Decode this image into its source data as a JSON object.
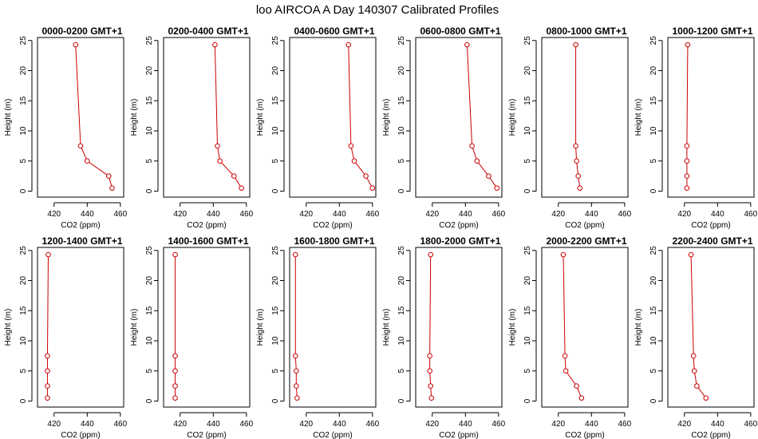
{
  "title": "loo AIRCOA A  Day 140307  Calibrated Profiles",
  "colors": {
    "series": "#cc0000",
    "axis": "#000000",
    "background": "#ffffff"
  },
  "chart_data": [
    {
      "type": "line",
      "title": "0000-0200 GMT+1",
      "xlabel": "CO2 (ppm)",
      "ylabel": "Height (m)",
      "xlim": [
        410,
        462
      ],
      "ylim": [
        -1,
        25.5
      ],
      "xticks": [
        420,
        440,
        460
      ],
      "yticks": [
        0,
        5,
        10,
        15,
        20,
        25
      ],
      "grid": false,
      "x": [
        433,
        436,
        440,
        453,
        455
      ],
      "y": [
        24.3,
        7.5,
        5,
        2.5,
        0.5
      ]
    },
    {
      "type": "line",
      "title": "0200-0400 GMT+1",
      "xlabel": "CO2 (ppm)",
      "ylabel": "Height (m)",
      "xlim": [
        410,
        462
      ],
      "ylim": [
        -1,
        25.5
      ],
      "xticks": [
        420,
        440,
        460
      ],
      "yticks": [
        0,
        5,
        10,
        15,
        20,
        25
      ],
      "grid": false,
      "x": [
        441,
        442.5,
        444,
        452.5,
        457
      ],
      "y": [
        24.3,
        7.5,
        5,
        2.5,
        0.5
      ]
    },
    {
      "type": "line",
      "title": "0400-0600 GMT+1",
      "xlabel": "CO2 (ppm)",
      "ylabel": "Height (m)",
      "xlim": [
        410,
        462
      ],
      "ylim": [
        -1,
        25.5
      ],
      "xticks": [
        420,
        440,
        460
      ],
      "yticks": [
        0,
        5,
        10,
        15,
        20,
        25
      ],
      "grid": false,
      "x": [
        445.5,
        447,
        449,
        456,
        460
      ],
      "y": [
        24.3,
        7.5,
        5,
        2.5,
        0.5
      ]
    },
    {
      "type": "line",
      "title": "0600-0800 GMT+1",
      "xlabel": "CO2 (ppm)",
      "ylabel": "Height (m)",
      "xlim": [
        410,
        462
      ],
      "ylim": [
        -1,
        25.5
      ],
      "xticks": [
        420,
        440,
        460
      ],
      "yticks": [
        0,
        5,
        10,
        15,
        20,
        25
      ],
      "grid": false,
      "x": [
        441,
        444,
        447,
        454,
        459
      ],
      "y": [
        24.3,
        7.5,
        5,
        2.5,
        0.5
      ]
    },
    {
      "type": "line",
      "title": "0800-1000 GMT+1",
      "xlabel": "CO2 (ppm)",
      "ylabel": "Height (m)",
      "xlim": [
        410,
        462
      ],
      "ylim": [
        -1,
        25.5
      ],
      "xticks": [
        420,
        440,
        460
      ],
      "yticks": [
        0,
        5,
        10,
        15,
        20,
        25
      ],
      "grid": false,
      "x": [
        430.5,
        430.5,
        431,
        432,
        433
      ],
      "y": [
        24.3,
        7.5,
        5,
        2.5,
        0.5
      ]
    },
    {
      "type": "line",
      "title": "1000-1200 GMT+1",
      "xlabel": "CO2 (ppm)",
      "ylabel": "Height (m)",
      "xlim": [
        410,
        462
      ],
      "ylim": [
        -1,
        25.5
      ],
      "xticks": [
        420,
        440,
        460
      ],
      "yticks": [
        0,
        5,
        10,
        15,
        20,
        25
      ],
      "grid": false,
      "x": [
        422,
        421.5,
        421.5,
        421.5,
        421.5
      ],
      "y": [
        24.3,
        7.5,
        5,
        2.5,
        0.5
      ]
    },
    {
      "type": "line",
      "title": "1200-1400 GMT+1",
      "xlabel": "CO2 (ppm)",
      "ylabel": "Height (m)",
      "xlim": [
        410,
        462
      ],
      "ylim": [
        -1,
        25.5
      ],
      "xticks": [
        420,
        440,
        460
      ],
      "yticks": [
        0,
        5,
        10,
        15,
        20,
        25
      ],
      "grid": false,
      "x": [
        416.5,
        416,
        416,
        416,
        416
      ],
      "y": [
        24.3,
        7.5,
        5,
        2.5,
        0.5
      ]
    },
    {
      "type": "line",
      "title": "1400-1600 GMT+1",
      "xlabel": "CO2 (ppm)",
      "ylabel": "Height (m)",
      "xlim": [
        410,
        462
      ],
      "ylim": [
        -1,
        25.5
      ],
      "xticks": [
        420,
        440,
        460
      ],
      "yticks": [
        0,
        5,
        10,
        15,
        20,
        25
      ],
      "grid": false,
      "x": [
        417,
        417,
        417,
        417,
        417
      ],
      "y": [
        24.3,
        7.5,
        5,
        2.5,
        0.5
      ]
    },
    {
      "type": "line",
      "title": "1600-1800 GMT+1",
      "xlabel": "CO2 (ppm)",
      "ylabel": "Height (m)",
      "xlim": [
        410,
        462
      ],
      "ylim": [
        -1,
        25.5
      ],
      "xticks": [
        420,
        440,
        460
      ],
      "yticks": [
        0,
        5,
        10,
        15,
        20,
        25
      ],
      "grid": false,
      "x": [
        413.5,
        413.5,
        414,
        414,
        414.5
      ],
      "y": [
        24.3,
        7.5,
        5,
        2.5,
        0.5
      ]
    },
    {
      "type": "line",
      "title": "1800-2000 GMT+1",
      "xlabel": "CO2 (ppm)",
      "ylabel": "Height (m)",
      "xlim": [
        410,
        462
      ],
      "ylim": [
        -1,
        25.5
      ],
      "xticks": [
        420,
        440,
        460
      ],
      "yticks": [
        0,
        5,
        10,
        15,
        20,
        25
      ],
      "grid": false,
      "x": [
        419,
        418.5,
        418.5,
        419,
        419.5
      ],
      "y": [
        24.3,
        7.5,
        5,
        2.5,
        0.5
      ]
    },
    {
      "type": "line",
      "title": "2000-2200 GMT+1",
      "xlabel": "CO2 (ppm)",
      "ylabel": "Height (m)",
      "xlim": [
        410,
        462
      ],
      "ylim": [
        -1,
        25.5
      ],
      "xticks": [
        420,
        440,
        460
      ],
      "yticks": [
        0,
        5,
        10,
        15,
        20,
        25
      ],
      "grid": false,
      "x": [
        423,
        424,
        424.5,
        431,
        434
      ],
      "y": [
        24.3,
        7.5,
        5,
        2.5,
        0.5
      ]
    },
    {
      "type": "line",
      "title": "2200-2400 GMT+1",
      "xlabel": "CO2 (ppm)",
      "ylabel": "Height (m)",
      "xlim": [
        410,
        462
      ],
      "ylim": [
        -1,
        25.5
      ],
      "xticks": [
        420,
        440,
        460
      ],
      "yticks": [
        0,
        5,
        10,
        15,
        20,
        25
      ],
      "grid": false,
      "x": [
        424,
        425.5,
        426,
        427.5,
        433
      ],
      "y": [
        24.3,
        7.5,
        5,
        2.5,
        0.5
      ]
    }
  ]
}
